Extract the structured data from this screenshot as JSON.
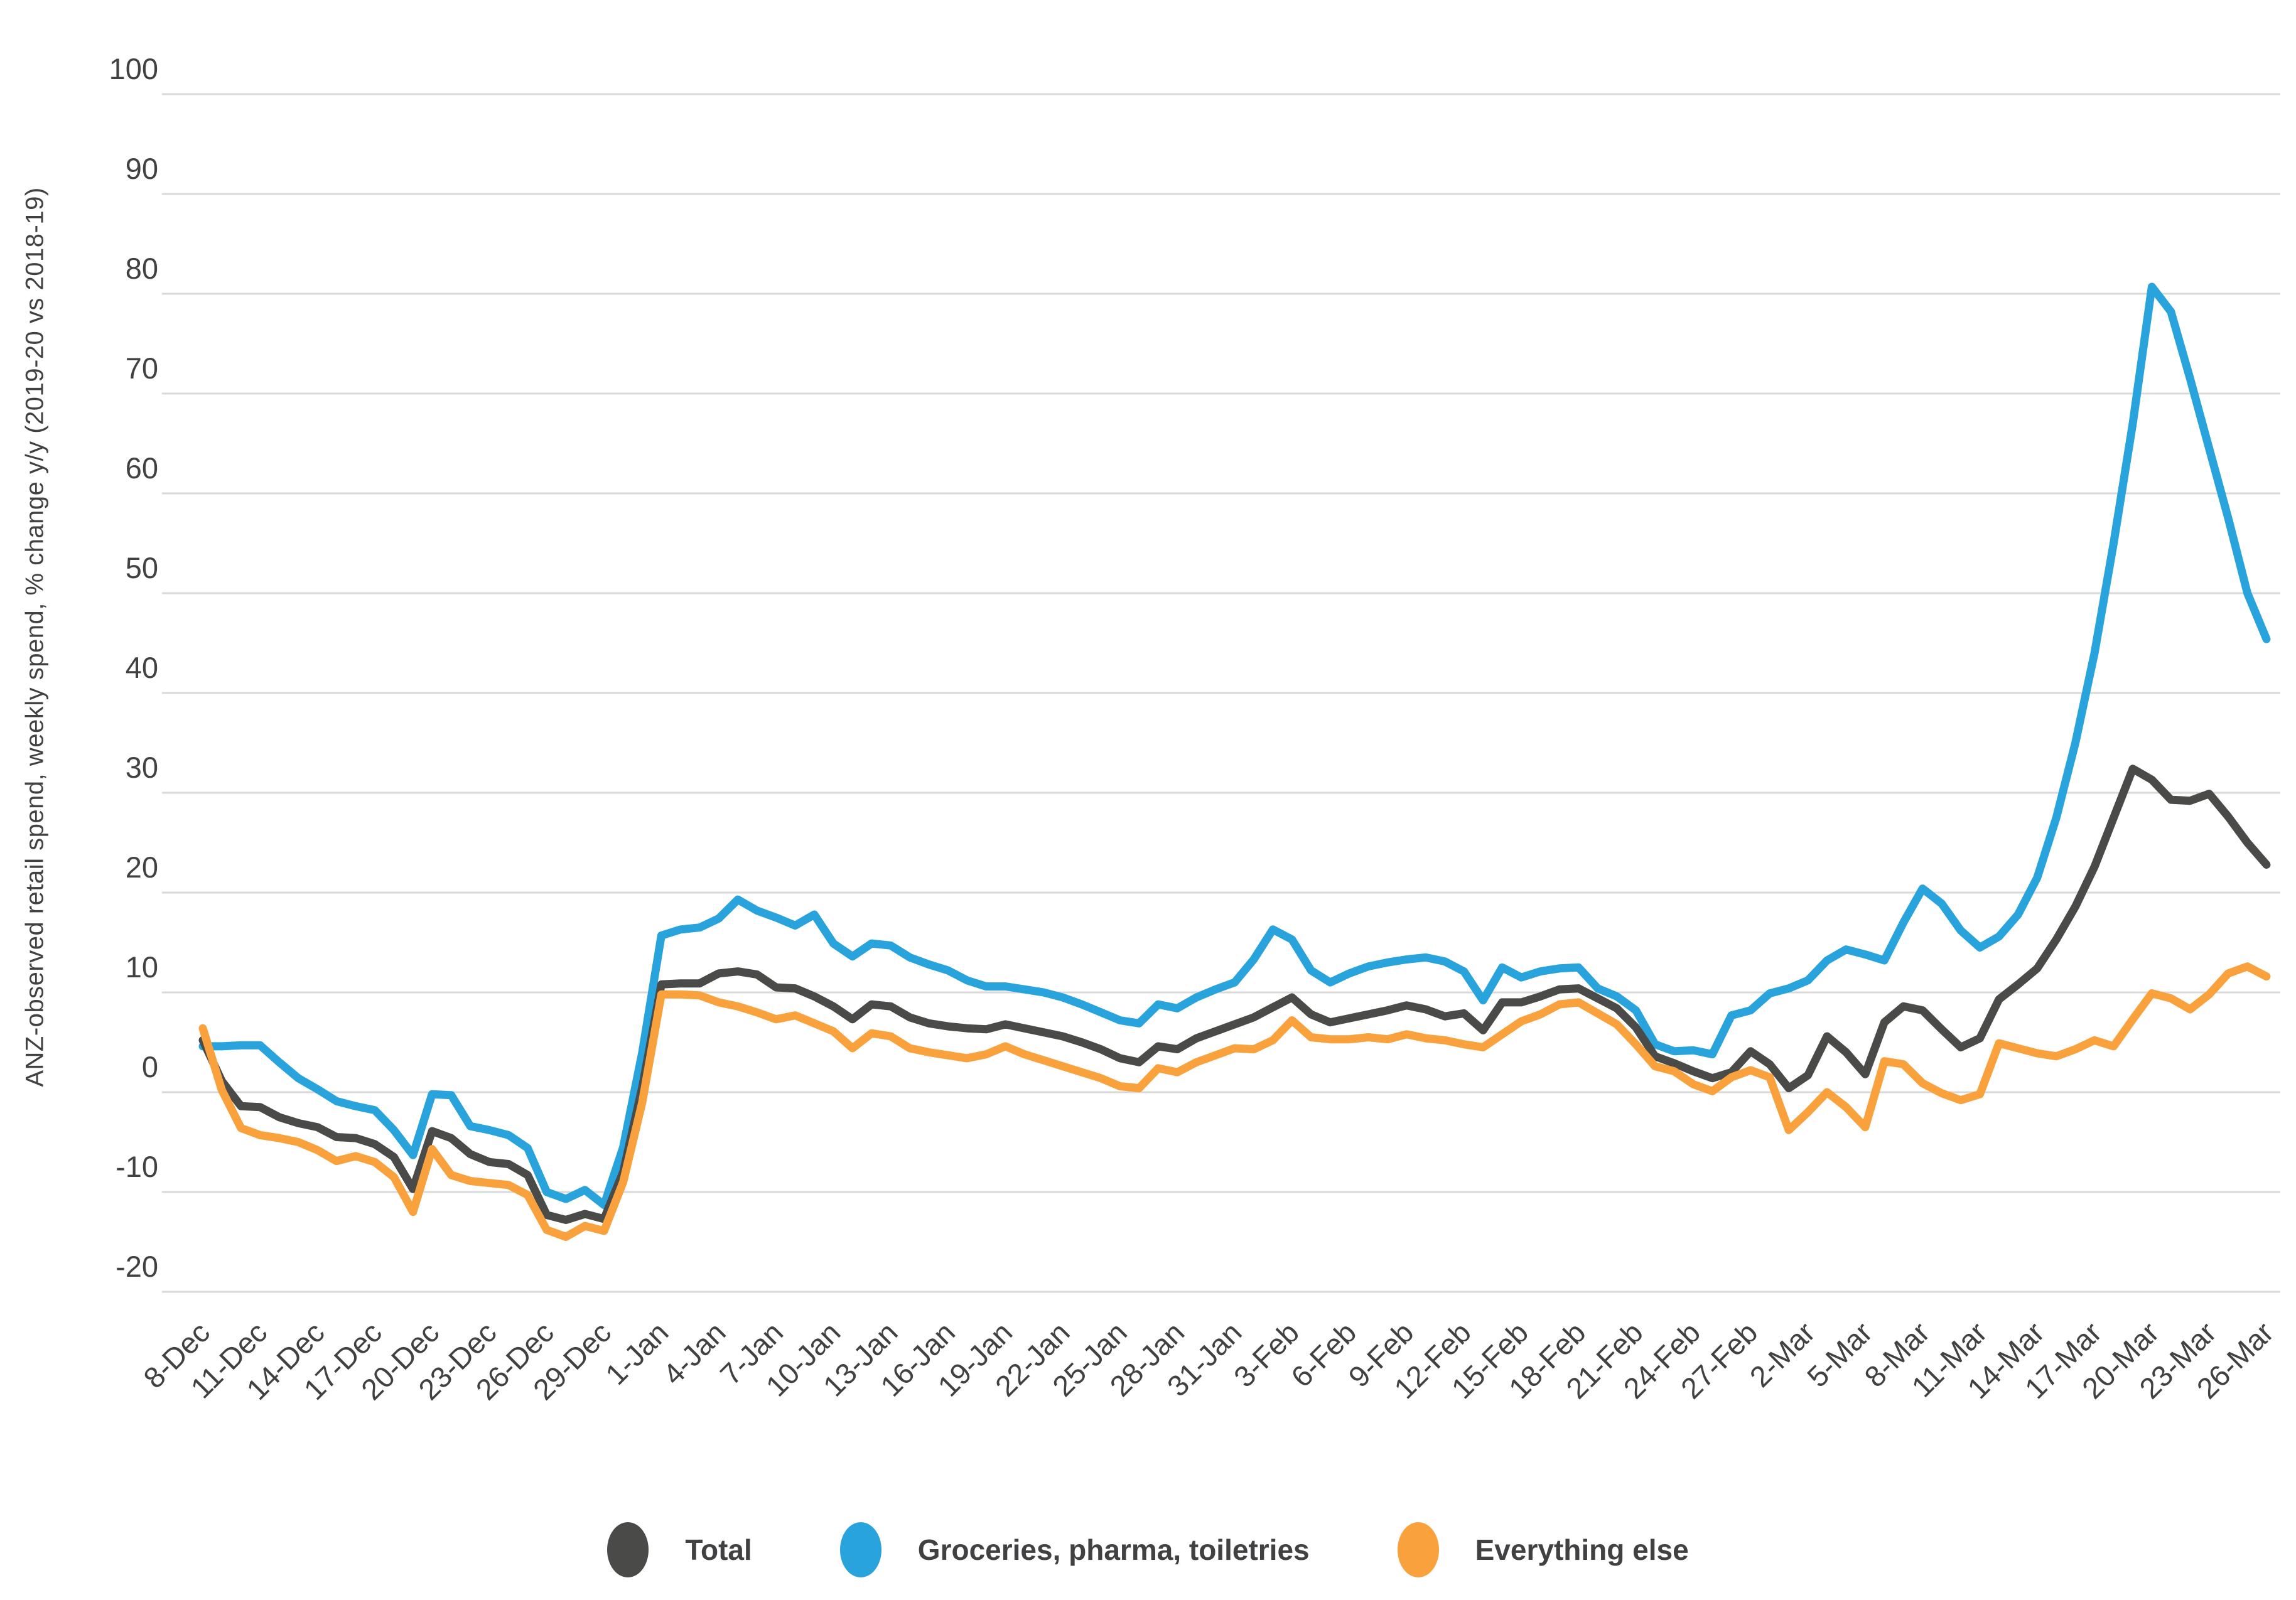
{
  "y_axis": {
    "title": "ANZ-observed retail spend, weekly spend, % change y/y (2019-20 vs 2018-19)",
    "tick_values": [
      100,
      90,
      80,
      70,
      60,
      50,
      40,
      30,
      20,
      10,
      0,
      -10,
      -20
    ],
    "min": -20,
    "max": 100,
    "grid_step": 10
  },
  "x_axis": {
    "tick_every": 3,
    "tick_labels": [
      "8-Dec",
      "11-Dec",
      "14-Dec",
      "17-Dec",
      "20-Dec",
      "23-Dec",
      "26-Dec",
      "29-Dec",
      "1-Jan",
      "4-Jan",
      "7-Jan",
      "10-Jan",
      "13-Jan",
      "16-Jan",
      "19-Jan",
      "22-Jan",
      "25-Jan",
      "28-Jan",
      "31-Jan",
      "3-Feb",
      "6-Feb",
      "9-Feb",
      "12-Feb",
      "15-Feb",
      "18-Feb",
      "21-Feb",
      "24-Feb",
      "27-Feb",
      "2-Mar",
      "5-Mar",
      "8-Mar",
      "11-Mar",
      "14-Mar",
      "17-Mar",
      "20-Mar",
      "23-Mar",
      "26-Mar"
    ]
  },
  "legend": {
    "items": [
      {
        "label": "Total",
        "color": "#4a4a48"
      },
      {
        "label": "Groceries, pharma, toiletries",
        "color": "#29a3dc"
      },
      {
        "label": "Everything else",
        "color": "#f9a13c"
      }
    ]
  },
  "colors": {
    "gridline": "#d9d9d9",
    "text": "#414042",
    "background": "#ffffff"
  },
  "chart_data": {
    "type": "line",
    "title": "",
    "xlabel": "",
    "ylabel": "ANZ-observed retail spend, weekly spend, % change y/y (2019-20 vs 2018-19)",
    "ylim": [
      -20,
      100
    ],
    "grid": "horizontal",
    "legend_position": "bottom",
    "x": [
      "8-Dec",
      "9-Dec",
      "10-Dec",
      "11-Dec",
      "12-Dec",
      "13-Dec",
      "14-Dec",
      "15-Dec",
      "16-Dec",
      "17-Dec",
      "18-Dec",
      "19-Dec",
      "20-Dec",
      "21-Dec",
      "22-Dec",
      "23-Dec",
      "24-Dec",
      "25-Dec",
      "26-Dec",
      "27-Dec",
      "28-Dec",
      "29-Dec",
      "30-Dec",
      "31-Dec",
      "1-Jan",
      "2-Jan",
      "3-Jan",
      "4-Jan",
      "5-Jan",
      "6-Jan",
      "7-Jan",
      "8-Jan",
      "9-Jan",
      "10-Jan",
      "11-Jan",
      "12-Jan",
      "13-Jan",
      "14-Jan",
      "15-Jan",
      "16-Jan",
      "17-Jan",
      "18-Jan",
      "19-Jan",
      "20-Jan",
      "21-Jan",
      "22-Jan",
      "23-Jan",
      "24-Jan",
      "25-Jan",
      "26-Jan",
      "27-Jan",
      "28-Jan",
      "29-Jan",
      "30-Jan",
      "31-Jan",
      "1-Feb",
      "2-Feb",
      "3-Feb",
      "4-Feb",
      "5-Feb",
      "6-Feb",
      "7-Feb",
      "8-Feb",
      "9-Feb",
      "10-Feb",
      "11-Feb",
      "12-Feb",
      "13-Feb",
      "14-Feb",
      "15-Feb",
      "16-Feb",
      "17-Feb",
      "18-Feb",
      "19-Feb",
      "20-Feb",
      "21-Feb",
      "22-Feb",
      "23-Feb",
      "24-Feb",
      "25-Feb",
      "26-Feb",
      "27-Feb",
      "28-Feb",
      "1-Mar",
      "2-Mar",
      "3-Mar",
      "4-Mar",
      "5-Mar",
      "6-Mar",
      "7-Mar",
      "8-Mar",
      "9-Mar",
      "10-Mar",
      "11-Mar",
      "12-Mar",
      "13-Mar",
      "14-Mar",
      "15-Mar",
      "16-Mar",
      "17-Mar",
      "18-Mar",
      "19-Mar",
      "20-Mar",
      "21-Mar",
      "22-Mar",
      "23-Mar",
      "24-Mar",
      "25-Mar",
      "26-Mar"
    ],
    "series": [
      {
        "name": "Total",
        "color": "#4a4a48",
        "values": [
          5.2,
          1.1,
          -1.4,
          -1.5,
          -2.5,
          -3.1,
          -3.5,
          -4.5,
          -4.6,
          -5.2,
          -6.5,
          -9.7,
          -3.9,
          -4.6,
          -6.2,
          -7.0,
          -7.2,
          -8.3,
          -12.3,
          -12.8,
          -12.2,
          -12.7,
          -8.0,
          0.5,
          10.8,
          10.9,
          10.9,
          11.9,
          12.1,
          11.8,
          10.5,
          10.4,
          9.6,
          8.6,
          7.3,
          8.8,
          8.6,
          7.5,
          6.9,
          6.6,
          6.4,
          6.3,
          6.8,
          6.4,
          6.0,
          5.6,
          5.0,
          4.3,
          3.4,
          3.0,
          4.6,
          4.3,
          5.4,
          6.1,
          6.8,
          7.5,
          8.5,
          9.5,
          7.8,
          7.0,
          7.4,
          7.8,
          8.2,
          8.7,
          8.3,
          7.6,
          7.9,
          6.2,
          9.0,
          9.0,
          9.6,
          10.3,
          10.4,
          9.4,
          8.4,
          6.5,
          3.6,
          2.9,
          2.1,
          1.4,
          2.0,
          4.1,
          2.8,
          0.4,
          1.7,
          5.6,
          4.0,
          1.8,
          7.0,
          8.6,
          8.2,
          6.3,
          4.5,
          5.4,
          9.3,
          10.8,
          12.4,
          15.3,
          18.6,
          22.6,
          27.5,
          32.4,
          31.3,
          29.3,
          29.2,
          29.9,
          27.6,
          25.0,
          22.8
        ]
      },
      {
        "name": "Groceries, pharma, toiletries",
        "color": "#29a3dc",
        "values": [
          4.6,
          4.6,
          4.7,
          4.7,
          3.0,
          1.4,
          0.3,
          -0.9,
          -1.4,
          -1.8,
          -3.8,
          -6.3,
          -0.2,
          -0.3,
          -3.4,
          -3.8,
          -4.3,
          -5.6,
          -10.0,
          -10.7,
          -9.8,
          -11.3,
          -5.5,
          4.0,
          15.7,
          16.3,
          16.5,
          17.4,
          19.3,
          18.2,
          17.5,
          16.7,
          17.8,
          14.9,
          13.6,
          14.9,
          14.7,
          13.5,
          12.8,
          12.2,
          11.2,
          10.6,
          10.6,
          10.3,
          10.0,
          9.5,
          8.8,
          8.0,
          7.2,
          6.9,
          8.8,
          8.4,
          9.5,
          10.3,
          11.0,
          13.3,
          16.3,
          15.3,
          12.2,
          11.0,
          11.9,
          12.6,
          13.0,
          13.3,
          13.5,
          13.1,
          12.1,
          9.2,
          12.5,
          11.5,
          12.1,
          12.4,
          12.5,
          10.4,
          9.6,
          8.2,
          4.8,
          4.1,
          4.2,
          3.8,
          7.7,
          8.2,
          9.9,
          10.4,
          11.2,
          13.2,
          14.3,
          13.8,
          13.2,
          17.0,
          20.4,
          18.9,
          16.2,
          14.5,
          15.6,
          17.8,
          21.5,
          27.5,
          35.0,
          44.0,
          55.0,
          67.0,
          80.7,
          78.2,
          71.5,
          64.5,
          57.5,
          50.0,
          45.4
        ]
      },
      {
        "name": "Everything else",
        "color": "#f9a13c",
        "values": [
          6.4,
          0.2,
          -3.6,
          -4.3,
          -4.6,
          -5.0,
          -5.8,
          -6.9,
          -6.4,
          -7.0,
          -8.5,
          -12.0,
          -5.7,
          -8.3,
          -8.9,
          -9.1,
          -9.3,
          -10.3,
          -13.8,
          -14.5,
          -13.4,
          -13.9,
          -9.0,
          -1.0,
          9.8,
          9.8,
          9.7,
          9.0,
          8.6,
          8.0,
          7.3,
          7.7,
          6.9,
          6.1,
          4.4,
          5.9,
          5.6,
          4.4,
          4.0,
          3.7,
          3.4,
          3.8,
          4.6,
          3.8,
          3.2,
          2.6,
          2.0,
          1.4,
          0.6,
          0.4,
          2.4,
          2.0,
          3.0,
          3.7,
          4.4,
          4.3,
          5.2,
          7.2,
          5.5,
          5.3,
          5.3,
          5.5,
          5.3,
          5.8,
          5.4,
          5.2,
          4.8,
          4.5,
          5.8,
          7.1,
          7.8,
          8.8,
          9.0,
          7.9,
          6.8,
          4.8,
          2.6,
          2.1,
          0.8,
          0.1,
          1.5,
          2.2,
          1.5,
          -3.8,
          -2.0,
          0.0,
          -1.5,
          -3.5,
          3.1,
          2.8,
          0.9,
          -0.1,
          -0.8,
          -0.2,
          4.9,
          4.4,
          3.9,
          3.6,
          4.3,
          5.2,
          4.6,
          7.3,
          9.9,
          9.4,
          8.3,
          9.8,
          11.9,
          12.6,
          11.6
        ]
      }
    ],
    "draw_order": [
      1,
      0,
      2
    ]
  }
}
